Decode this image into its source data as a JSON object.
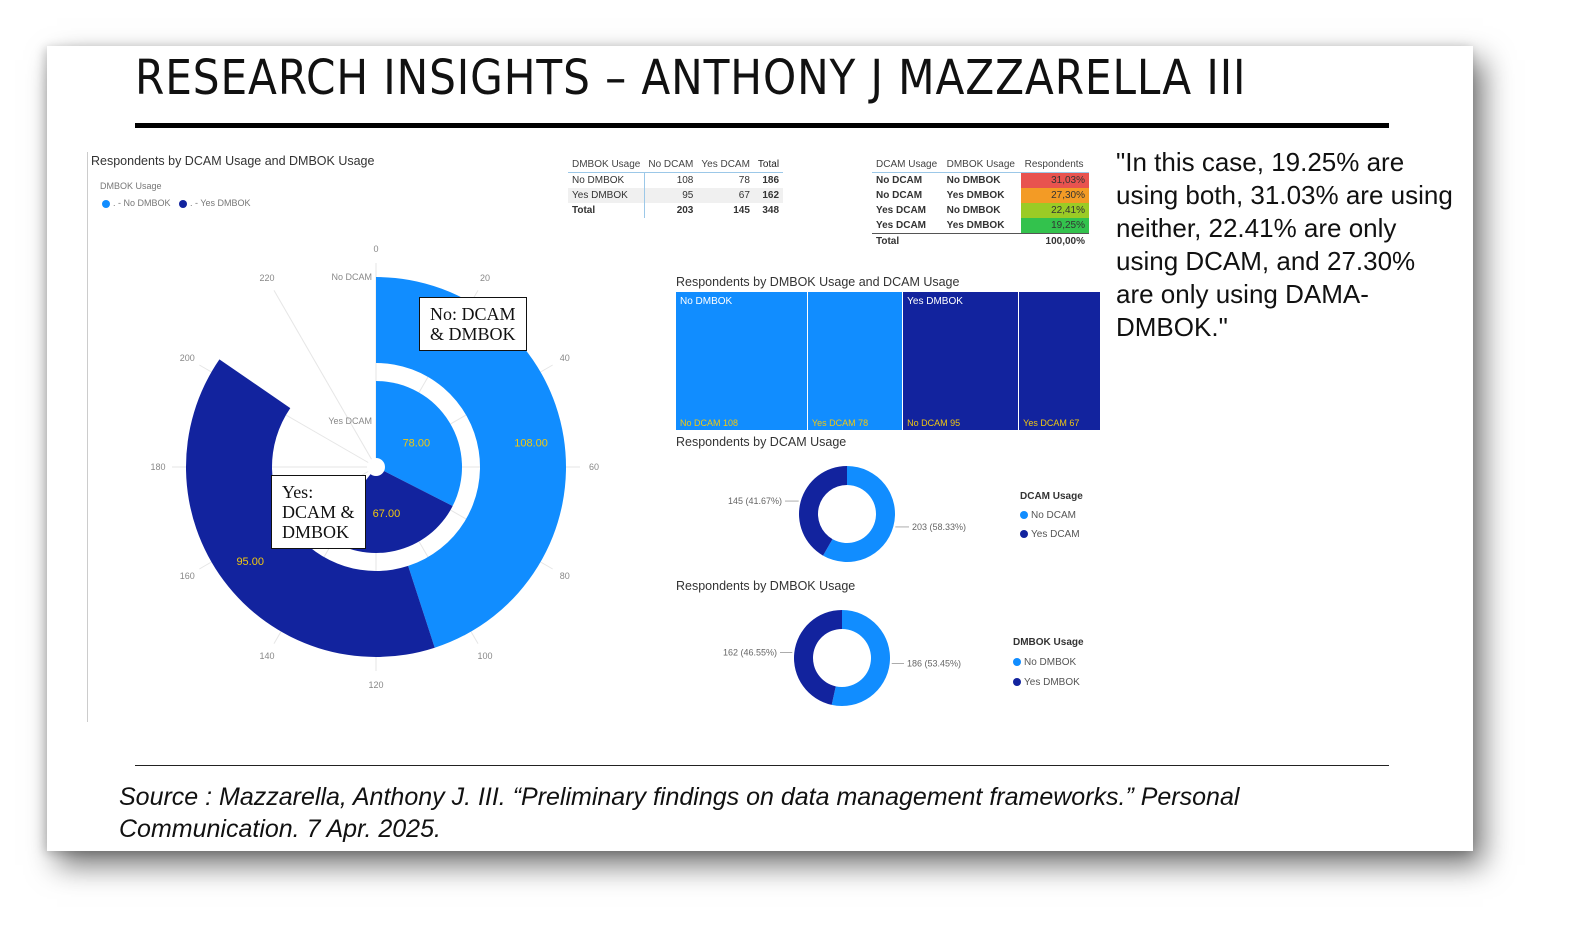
{
  "slide": {
    "title": "RESEARCH INSIGHTS – ANTHONY J MAZZARELLA III",
    "quote": "\"In this case, 19.25% are using both, 31.03% are using neither, 22.41% are only using DCAM, and 27.30% are only using DAMA-DMBOK.\"",
    "source": "Source : Mazzarella, Anthony J. III. “Preliminary findings on data management frameworks.” Personal Communication. 7 Apr. 2025."
  },
  "colors": {
    "light_blue": "#118DFF",
    "dark_blue": "#12239E",
    "red": "#E8534F",
    "orange": "#F39B25",
    "yellow_green": "#9BCB25",
    "green": "#33C24D"
  },
  "chart_data": [
    {
      "type": "radial-bar",
      "title": "Respondents by DCAM Usage and DMBOK Usage",
      "legend_title": "DMBOK Usage",
      "legend": [
        ". - No DMBOK",
        ". - Yes DMBOK"
      ],
      "categories": [
        "No DCAM",
        "Yes DCAM"
      ],
      "series": [
        {
          "name": "No DMBOK",
          "values": [
            108,
            78
          ],
          "labels": [
            "108.00",
            "78.00"
          ]
        },
        {
          "name": "Yes DMBOK",
          "values": [
            95,
            67
          ],
          "labels": [
            "95.00",
            "67.00"
          ]
        }
      ],
      "axis_ticks": [
        "0",
        "20",
        "40",
        "60",
        "80",
        "100",
        "120",
        "140",
        "160",
        "180",
        "200",
        "220"
      ],
      "axis_values": [
        0,
        20,
        40,
        60,
        80,
        100,
        120,
        140,
        160,
        180,
        200,
        220
      ],
      "axis_max": 240,
      "callouts": {
        "no": [
          "No: DCAM",
          "& DMBOK"
        ],
        "yes": [
          "Yes:",
          "DCAM &",
          "DMBOK"
        ]
      }
    },
    {
      "type": "table",
      "headers": [
        "DMBOK Usage",
        "No DCAM",
        "Yes DCAM",
        "Total"
      ],
      "rows": [
        [
          "No DMBOK",
          "108",
          "78",
          "186"
        ],
        [
          "Yes DMBOK",
          "95",
          "67",
          "162"
        ],
        [
          "Total",
          "203",
          "145",
          "348"
        ]
      ]
    },
    {
      "type": "table",
      "headers": [
        "DCAM Usage",
        "DMBOK Usage",
        "Respondents"
      ],
      "rows": [
        [
          "No DCAM",
          "No DMBOK",
          "31,03%"
        ],
        [
          "No DCAM",
          "Yes DMBOK",
          "27,30%"
        ],
        [
          "Yes DCAM",
          "No DMBOK",
          "22,41%"
        ],
        [
          "Yes DCAM",
          "Yes DMBOK",
          "19,25%"
        ],
        [
          "Total",
          "",
          "100,00%"
        ]
      ]
    },
    {
      "type": "treemap",
      "title": "Respondents by DMBOK Usage and DCAM Usage",
      "groups": [
        {
          "name": "No DMBOK",
          "cells": [
            {
              "label": "No DCAM 108",
              "value": 108
            },
            {
              "label": "Yes DCAM 78",
              "value": 78
            }
          ]
        },
        {
          "name": "Yes DMBOK",
          "cells": [
            {
              "label": "No DCAM 95",
              "value": 95
            },
            {
              "label": "Yes DCAM 67",
              "value": 67
            }
          ]
        }
      ]
    },
    {
      "type": "pie",
      "variant": "donut",
      "title": "Respondents by DCAM Usage",
      "legend_title": "DCAM Usage",
      "legend": [
        "No DCAM",
        "Yes DCAM"
      ],
      "values": [
        203,
        145
      ],
      "labels": [
        "203 (58.33%)",
        "145 (41.67%)"
      ]
    },
    {
      "type": "pie",
      "variant": "donut",
      "title": "Respondents by DMBOK Usage",
      "legend_title": "DMBOK Usage",
      "legend": [
        "No DMBOK",
        "Yes DMBOK"
      ],
      "values": [
        186,
        162
      ],
      "labels": [
        "186 (53.45%)",
        "162 (46.55%)"
      ]
    }
  ]
}
